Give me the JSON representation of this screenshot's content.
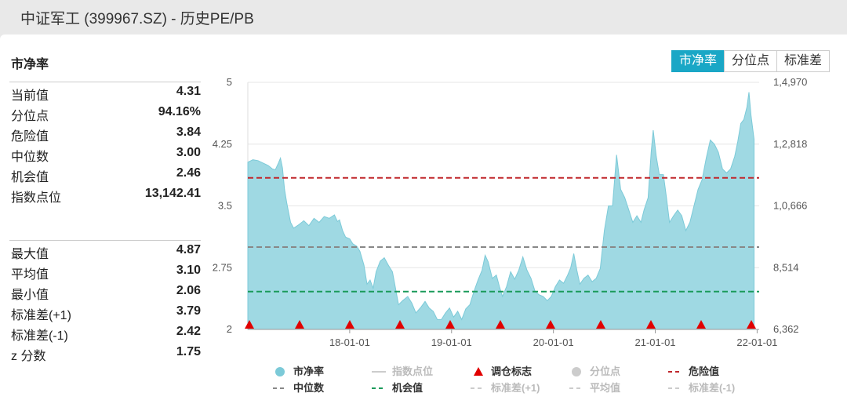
{
  "window": {
    "title": "中证军工 (399967.SZ) - 历史PE/PB"
  },
  "section_title": "市净率",
  "tabs": [
    {
      "label": "市净率",
      "active": true
    },
    {
      "label": "分位点",
      "active": false
    },
    {
      "label": "标准差",
      "active": false
    }
  ],
  "stats_group1": [
    {
      "label": "当前值",
      "value": "4.31"
    },
    {
      "label": "分位点",
      "value": "94.16%"
    },
    {
      "label": "危险值",
      "value": "3.84"
    },
    {
      "label": "中位数",
      "value": "3.00"
    },
    {
      "label": "机会值",
      "value": "2.46"
    },
    {
      "label": "指数点位",
      "value": "13,142.41"
    }
  ],
  "stats_group2": [
    {
      "label": "最大值",
      "value": "4.87"
    },
    {
      "label": "平均值",
      "value": "3.10"
    },
    {
      "label": "最小值",
      "value": "2.06"
    },
    {
      "label": "标准差(+1)",
      "value": "3.79"
    },
    {
      "label": "标准差(-1)",
      "value": "2.42"
    },
    {
      "label": "z 分数",
      "value": "1.75"
    }
  ],
  "colors": {
    "area_fill": "#9fd9e3",
    "area_line": "#7ccad8",
    "danger": "#c0282d",
    "median": "#888888",
    "opportunity": "#1a9a5a",
    "marker": "#e10000",
    "tab_active": "#1aa7c6"
  },
  "chart_data": {
    "type": "area",
    "y_left_ticks": [
      "5",
      "4.25",
      "3.5",
      "2.75",
      "2"
    ],
    "y_right_ticks": [
      "1,4,970",
      "1,2,818",
      "1,0,666",
      "8,514",
      "6,362"
    ],
    "ylim": [
      2,
      5
    ],
    "x_ticks": [
      "18-01-01",
      "19-01-01",
      "20-01-01",
      "21-01-01",
      "22-01-01"
    ],
    "reference_lines": {
      "danger": 3.84,
      "median": 3.0,
      "opportunity": 2.46
    },
    "rebalance_markers": 11,
    "x_start": 0,
    "x_end": 5.02,
    "series": [
      {
        "name": "市净率",
        "points": [
          [
            0.0,
            4.03
          ],
          [
            0.05,
            4.06
          ],
          [
            0.1,
            4.05
          ],
          [
            0.15,
            4.02
          ],
          [
            0.2,
            3.99
          ],
          [
            0.24,
            3.95
          ],
          [
            0.27,
            3.94
          ],
          [
            0.3,
            4.02
          ],
          [
            0.32,
            4.08
          ],
          [
            0.34,
            3.96
          ],
          [
            0.36,
            3.7
          ],
          [
            0.38,
            3.55
          ],
          [
            0.4,
            3.42
          ],
          [
            0.42,
            3.3
          ],
          [
            0.45,
            3.23
          ],
          [
            0.5,
            3.27
          ],
          [
            0.55,
            3.32
          ],
          [
            0.6,
            3.26
          ],
          [
            0.65,
            3.35
          ],
          [
            0.7,
            3.3
          ],
          [
            0.75,
            3.37
          ],
          [
            0.8,
            3.35
          ],
          [
            0.85,
            3.39
          ],
          [
            0.88,
            3.31
          ],
          [
            0.9,
            3.33
          ],
          [
            0.93,
            3.2
          ],
          [
            0.96,
            3.12
          ],
          [
            1.0,
            3.1
          ],
          [
            1.03,
            3.04
          ],
          [
            1.07,
            3.01
          ],
          [
            1.1,
            2.95
          ],
          [
            1.14,
            2.78
          ],
          [
            1.17,
            2.55
          ],
          [
            1.2,
            2.6
          ],
          [
            1.23,
            2.5
          ],
          [
            1.26,
            2.7
          ],
          [
            1.3,
            2.83
          ],
          [
            1.34,
            2.87
          ],
          [
            1.38,
            2.78
          ],
          [
            1.42,
            2.7
          ],
          [
            1.45,
            2.5
          ],
          [
            1.48,
            2.3
          ],
          [
            1.52,
            2.35
          ],
          [
            1.57,
            2.4
          ],
          [
            1.61,
            2.32
          ],
          [
            1.65,
            2.2
          ],
          [
            1.7,
            2.27
          ],
          [
            1.74,
            2.34
          ],
          [
            1.78,
            2.26
          ],
          [
            1.82,
            2.22
          ],
          [
            1.86,
            2.12
          ],
          [
            1.9,
            2.12
          ],
          [
            1.94,
            2.2
          ],
          [
            1.98,
            2.26
          ],
          [
            2.02,
            2.15
          ],
          [
            2.06,
            2.22
          ],
          [
            2.1,
            2.12
          ],
          [
            2.14,
            2.25
          ],
          [
            2.18,
            2.3
          ],
          [
            2.22,
            2.46
          ],
          [
            2.26,
            2.6
          ],
          [
            2.3,
            2.72
          ],
          [
            2.33,
            2.9
          ],
          [
            2.36,
            2.82
          ],
          [
            2.4,
            2.62
          ],
          [
            2.44,
            2.66
          ],
          [
            2.47,
            2.52
          ],
          [
            2.5,
            2.4
          ],
          [
            2.54,
            2.52
          ],
          [
            2.58,
            2.7
          ],
          [
            2.62,
            2.61
          ],
          [
            2.66,
            2.72
          ],
          [
            2.7,
            2.88
          ],
          [
            2.74,
            2.72
          ],
          [
            2.78,
            2.62
          ],
          [
            2.82,
            2.46
          ],
          [
            2.86,
            2.42
          ],
          [
            2.9,
            2.4
          ],
          [
            2.94,
            2.35
          ],
          [
            2.98,
            2.4
          ],
          [
            3.02,
            2.52
          ],
          [
            3.06,
            2.6
          ],
          [
            3.1,
            2.56
          ],
          [
            3.14,
            2.66
          ],
          [
            3.17,
            2.75
          ],
          [
            3.2,
            2.92
          ],
          [
            3.23,
            2.72
          ],
          [
            3.26,
            2.55
          ],
          [
            3.3,
            2.62
          ],
          [
            3.34,
            2.66
          ],
          [
            3.38,
            2.58
          ],
          [
            3.42,
            2.62
          ],
          [
            3.46,
            2.74
          ],
          [
            3.5,
            3.2
          ],
          [
            3.54,
            3.5
          ],
          [
            3.58,
            3.5
          ],
          [
            3.62,
            4.12
          ],
          [
            3.66,
            3.7
          ],
          [
            3.7,
            3.6
          ],
          [
            3.74,
            3.45
          ],
          [
            3.78,
            3.3
          ],
          [
            3.82,
            3.38
          ],
          [
            3.86,
            3.3
          ],
          [
            3.89,
            3.45
          ],
          [
            3.93,
            3.6
          ],
          [
            3.96,
            4.15
          ],
          [
            3.98,
            4.42
          ],
          [
            4.01,
            4.1
          ],
          [
            4.04,
            3.88
          ],
          [
            4.08,
            3.88
          ],
          [
            4.11,
            3.6
          ],
          [
            4.14,
            3.3
          ],
          [
            4.18,
            3.38
          ],
          [
            4.22,
            3.45
          ],
          [
            4.26,
            3.38
          ],
          [
            4.3,
            3.2
          ],
          [
            4.34,
            3.3
          ],
          [
            4.38,
            3.5
          ],
          [
            4.42,
            3.7
          ],
          [
            4.46,
            3.82
          ],
          [
            4.5,
            4.08
          ],
          [
            4.54,
            4.3
          ],
          [
            4.58,
            4.25
          ],
          [
            4.62,
            4.15
          ],
          [
            4.66,
            3.95
          ],
          [
            4.7,
            3.9
          ],
          [
            4.74,
            3.95
          ],
          [
            4.78,
            4.1
          ],
          [
            4.81,
            4.28
          ],
          [
            4.84,
            4.5
          ],
          [
            4.87,
            4.55
          ],
          [
            4.9,
            4.7
          ],
          [
            4.92,
            4.88
          ],
          [
            4.94,
            4.6
          ],
          [
            4.97,
            4.31
          ]
        ]
      }
    ],
    "legend": [
      {
        "label": "市净率",
        "symbol": "circle",
        "color": "#7ccad8",
        "enabled": true
      },
      {
        "label": "指数点位",
        "symbol": "line",
        "color": "#cccccc",
        "enabled": false
      },
      {
        "label": "调仓标志",
        "symbol": "triangle",
        "color": "#e10000",
        "enabled": true
      },
      {
        "label": "分位点",
        "symbol": "circle",
        "color": "#cccccc",
        "enabled": false
      },
      {
        "label": "危险值",
        "symbol": "dash",
        "color": "#c0282d",
        "enabled": true
      },
      {
        "label": "中位数",
        "symbol": "dash",
        "color": "#888888",
        "enabled": true
      },
      {
        "label": "机会值",
        "symbol": "dash",
        "color": "#1a9a5a",
        "enabled": true
      },
      {
        "label": "标准差(+1)",
        "symbol": "dash",
        "color": "#cccccc",
        "enabled": false
      },
      {
        "label": "平均值",
        "symbol": "dash",
        "color": "#cccccc",
        "enabled": false
      },
      {
        "label": "标准差(-1)",
        "symbol": "dash",
        "color": "#cccccc",
        "enabled": false
      }
    ]
  }
}
